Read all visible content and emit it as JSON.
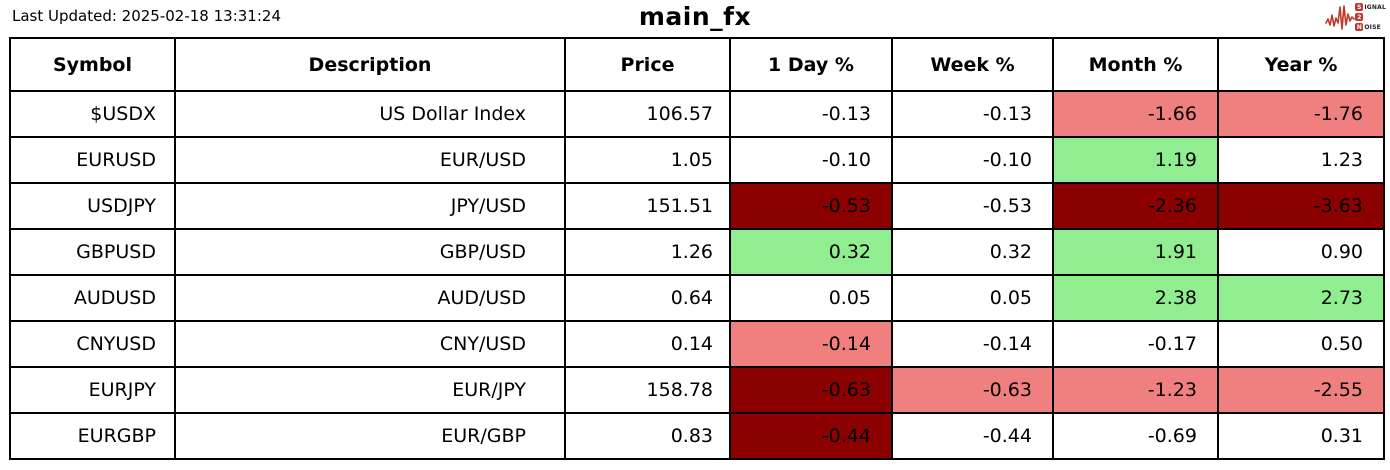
{
  "page": {
    "last_updated": "Last Updated: 2025-02-18 13:31:24",
    "title": "main_fx"
  },
  "logo": {
    "signal_initial": "S",
    "signal_rest": "IGNAL",
    "middle": "2",
    "noise_initial": "N",
    "noise_rest": "OISE",
    "accent": "#c0392b"
  },
  "colors": {
    "neg_strong": "#8B0000",
    "neg": "#F08080",
    "pos": "#90EE90",
    "border": "#000000",
    "background": "#FFFFFF"
  },
  "chart_data": {
    "type": "table",
    "title": "main_fx",
    "columns": [
      "Symbol",
      "Description",
      "Price",
      "1 Day %",
      "Week %",
      "Month %",
      "Year %"
    ],
    "rows": [
      [
        "$USDX",
        "US Dollar Index",
        "106.57",
        "-0.13",
        "-0.13",
        "-1.66",
        "-1.76"
      ],
      [
        "EURUSD",
        "EUR/USD",
        "1.05",
        "-0.10",
        "-0.10",
        "1.19",
        "1.23"
      ],
      [
        "USDJPY",
        "JPY/USD",
        "151.51",
        "-0.53",
        "-0.53",
        "-2.36",
        "-3.63"
      ],
      [
        "GBPUSD",
        "GBP/USD",
        "1.26",
        "0.32",
        "0.32",
        "1.91",
        "0.90"
      ],
      [
        "AUDUSD",
        "AUD/USD",
        "0.64",
        "0.05",
        "0.05",
        "2.38",
        "2.73"
      ],
      [
        "CNYUSD",
        "CNY/USD",
        "0.14",
        "-0.14",
        "-0.14",
        "-0.17",
        "0.50"
      ],
      [
        "EURJPY",
        "EUR/JPY",
        "158.78",
        "-0.63",
        "-0.63",
        "-1.23",
        "-2.55"
      ],
      [
        "EURGBP",
        "EUR/GBP",
        "0.83",
        "-0.44",
        "-0.44",
        "-0.69",
        "0.31"
      ]
    ],
    "cell_highlights": [
      [
        null,
        null,
        null,
        null,
        null,
        "neg",
        "neg"
      ],
      [
        null,
        null,
        null,
        null,
        null,
        "pos",
        null
      ],
      [
        null,
        null,
        null,
        "neg_strong",
        null,
        "neg_strong",
        "neg_strong"
      ],
      [
        null,
        null,
        null,
        "pos",
        null,
        "pos",
        null
      ],
      [
        null,
        null,
        null,
        null,
        null,
        "pos",
        "pos"
      ],
      [
        null,
        null,
        null,
        "neg",
        null,
        null,
        null
      ],
      [
        null,
        null,
        null,
        "neg_strong",
        "neg",
        "neg",
        "neg"
      ],
      [
        null,
        null,
        null,
        "neg_strong",
        null,
        null,
        null
      ]
    ]
  }
}
